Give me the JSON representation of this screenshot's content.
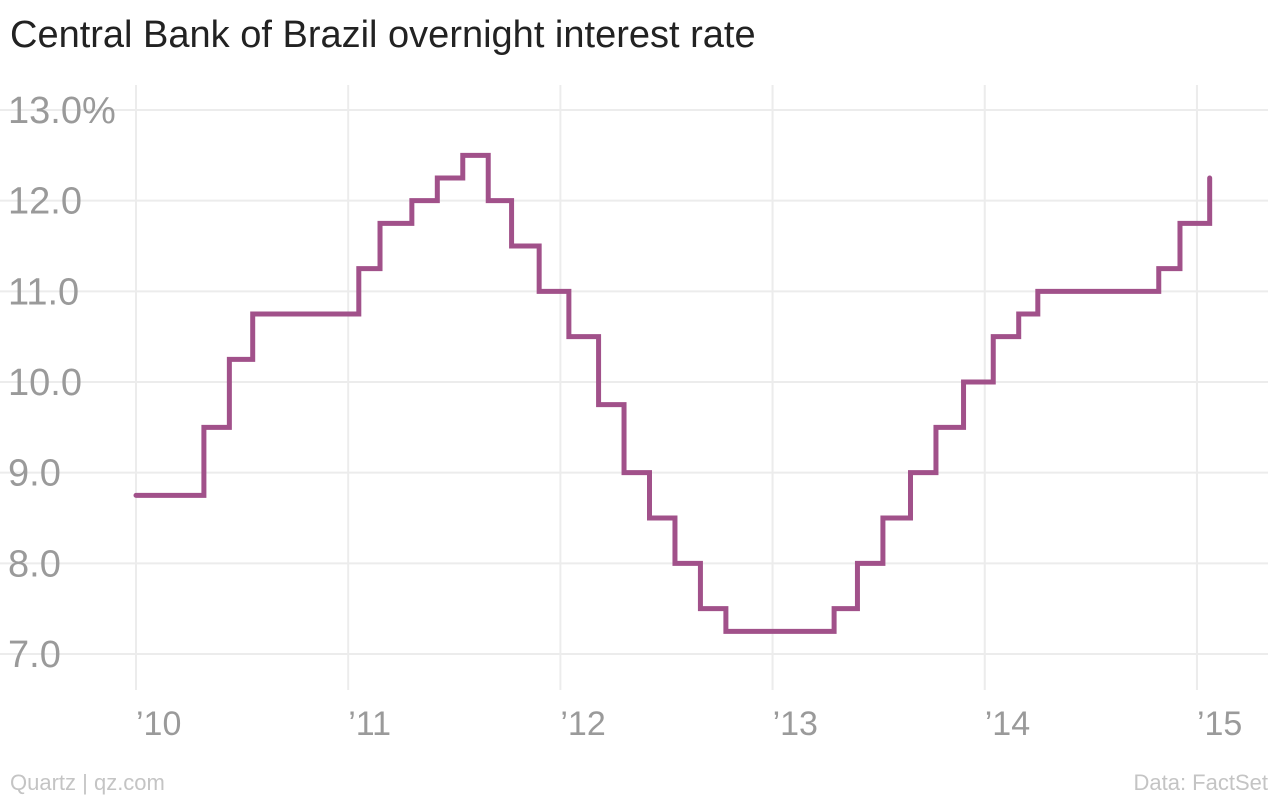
{
  "title": "Central Bank of Brazil overnight interest rate",
  "footer": {
    "credit": "Quartz | qz.com",
    "source": "Data: FactSet"
  },
  "colors": {
    "line": "#a1518a",
    "grid": "#ececec",
    "tick_label": "#9a9a9a"
  },
  "chart_data": {
    "type": "line",
    "step": "after",
    "xlim": [
      2010.0,
      2015.25
    ],
    "ylim": [
      7.0,
      13.0
    ],
    "x_ticks": [
      2010,
      2011,
      2012,
      2013,
      2014,
      2015
    ],
    "x_tick_labels": [
      "’10",
      "’11",
      "’12",
      "’13",
      "’14",
      "’15"
    ],
    "y_ticks": [
      13,
      12,
      11,
      10,
      9,
      8,
      7
    ],
    "y_tick_labels": [
      "13.0%",
      "12.0",
      "11.0",
      "10.0",
      "9.0",
      "8.0",
      "7.0"
    ],
    "grid": true,
    "series": [
      {
        "x": [
          2010.0,
          2010.32,
          2010.44,
          2010.55,
          2011.05,
          2011.15,
          2011.3,
          2011.42,
          2011.54,
          2011.66,
          2011.77,
          2011.9,
          2012.04,
          2012.18,
          2012.3,
          2012.42,
          2012.54,
          2012.66,
          2012.78,
          2013.29,
          2013.4,
          2013.52,
          2013.65,
          2013.77,
          2013.9,
          2014.04,
          2014.16,
          2014.25,
          2014.82,
          2014.92,
          2015.06
        ],
        "y": [
          8.75,
          9.5,
          10.25,
          10.75,
          11.25,
          11.75,
          12.0,
          12.25,
          12.5,
          12.0,
          11.5,
          11.0,
          10.5,
          9.75,
          9.0,
          8.5,
          8.0,
          7.5,
          7.25,
          7.5,
          8.0,
          8.5,
          9.0,
          9.5,
          10.0,
          10.5,
          10.75,
          11.0,
          11.25,
          11.75,
          12.25
        ]
      }
    ]
  }
}
